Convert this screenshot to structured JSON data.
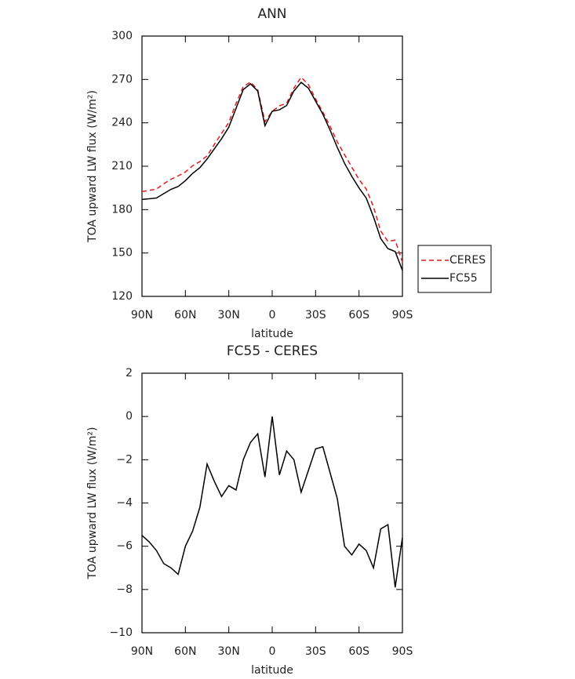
{
  "chart_data": [
    {
      "type": "line",
      "title": "ANN",
      "xlabel": "latitude",
      "ylabel": "TOA upward LW flux (W/m²)",
      "x": [
        90,
        85,
        80,
        75,
        70,
        65,
        60,
        55,
        50,
        45,
        40,
        35,
        30,
        25,
        20,
        15,
        10,
        5,
        0,
        -5,
        -10,
        -15,
        -20,
        -25,
        -30,
        -35,
        -40,
        -45,
        -50,
        -55,
        -60,
        -65,
        -70,
        -75,
        -80,
        -85,
        -90
      ],
      "series": [
        {
          "name": "CERES",
          "color": "#e41a1c",
          "style": "dashed",
          "values": [
            192.5,
            193.3,
            194.2,
            197.8,
            201,
            203.3,
            206,
            210.3,
            213.2,
            217.2,
            225,
            232.7,
            240.2,
            253.4,
            265,
            268.2,
            262.8,
            240.8,
            248,
            251.7,
            253.6,
            264,
            271.5,
            266.5,
            256.5,
            247.4,
            237.6,
            226.8,
            218,
            209.4,
            200.9,
            194.2,
            182,
            165.2,
            158,
            158.9,
            143.6
          ]
        },
        {
          "name": "FC55",
          "color": "#000000",
          "style": "solid",
          "values": [
            187,
            187.5,
            188,
            191,
            194,
            196,
            200,
            205,
            209,
            215,
            222,
            229,
            237,
            250,
            263,
            267,
            262,
            238,
            248,
            249,
            252,
            262,
            268,
            264,
            255,
            246,
            235,
            223,
            212,
            203,
            195,
            188,
            175,
            160,
            153,
            151,
            138
          ]
        }
      ],
      "xlim": [
        90,
        -90
      ],
      "xticks": [
        {
          "value": 90,
          "label": "90N"
        },
        {
          "value": 60,
          "label": "60N"
        },
        {
          "value": 30,
          "label": "30N"
        },
        0,
        {
          "value": -30,
          "label": "30S"
        },
        {
          "value": -60,
          "label": "60S"
        },
        {
          "value": -90,
          "label": "90S"
        }
      ],
      "ylim": [
        120,
        300
      ],
      "yticks": [
        120,
        150,
        180,
        210,
        240,
        270,
        300
      ],
      "legend": "right"
    },
    {
      "type": "line",
      "title": "FC55 - CERES",
      "xlabel": "latitude",
      "ylabel": "TOA upward LW flux (W/m²)",
      "x": [
        90,
        85,
        80,
        75,
        70,
        65,
        60,
        55,
        50,
        45,
        40,
        35,
        30,
        25,
        20,
        15,
        10,
        5,
        0,
        -5,
        -10,
        -15,
        -20,
        -25,
        -30,
        -35,
        -40,
        -45,
        -50,
        -55,
        -60,
        -65,
        -70,
        -75,
        -80,
        -85,
        -90
      ],
      "color": "#000000",
      "values": [
        -5.5,
        -5.8,
        -6.2,
        -6.8,
        -7.0,
        -7.3,
        -6.0,
        -5.3,
        -4.2,
        -2.2,
        -3.0,
        -3.7,
        -3.2,
        -3.4,
        -2.0,
        -1.2,
        -0.8,
        -2.8,
        0.0,
        -2.7,
        -1.6,
        -2.0,
        -3.5,
        -2.5,
        -1.5,
        -1.4,
        -2.6,
        -3.8,
        -6.0,
        -6.4,
        -5.9,
        -6.2,
        -7.0,
        -5.2,
        -5.0,
        -7.9,
        -5.6
      ],
      "xlim": [
        90,
        -90
      ],
      "xticks": [
        {
          "value": 90,
          "label": "90N"
        },
        {
          "value": 60,
          "label": "60N"
        },
        {
          "value": 30,
          "label": "30N"
        },
        0,
        {
          "value": -30,
          "label": "30S"
        },
        {
          "value": -60,
          "label": "60S"
        },
        {
          "value": -90,
          "label": "90S"
        }
      ],
      "ylim": [
        -10,
        2
      ],
      "yticks": [
        {
          "value": -10,
          "label": "−10"
        },
        {
          "value": -8,
          "label": "−8"
        },
        {
          "value": -6,
          "label": "−6"
        },
        {
          "value": -4,
          "label": "−4"
        },
        {
          "value": -2,
          "label": "−2"
        },
        0,
        2
      ]
    }
  ]
}
